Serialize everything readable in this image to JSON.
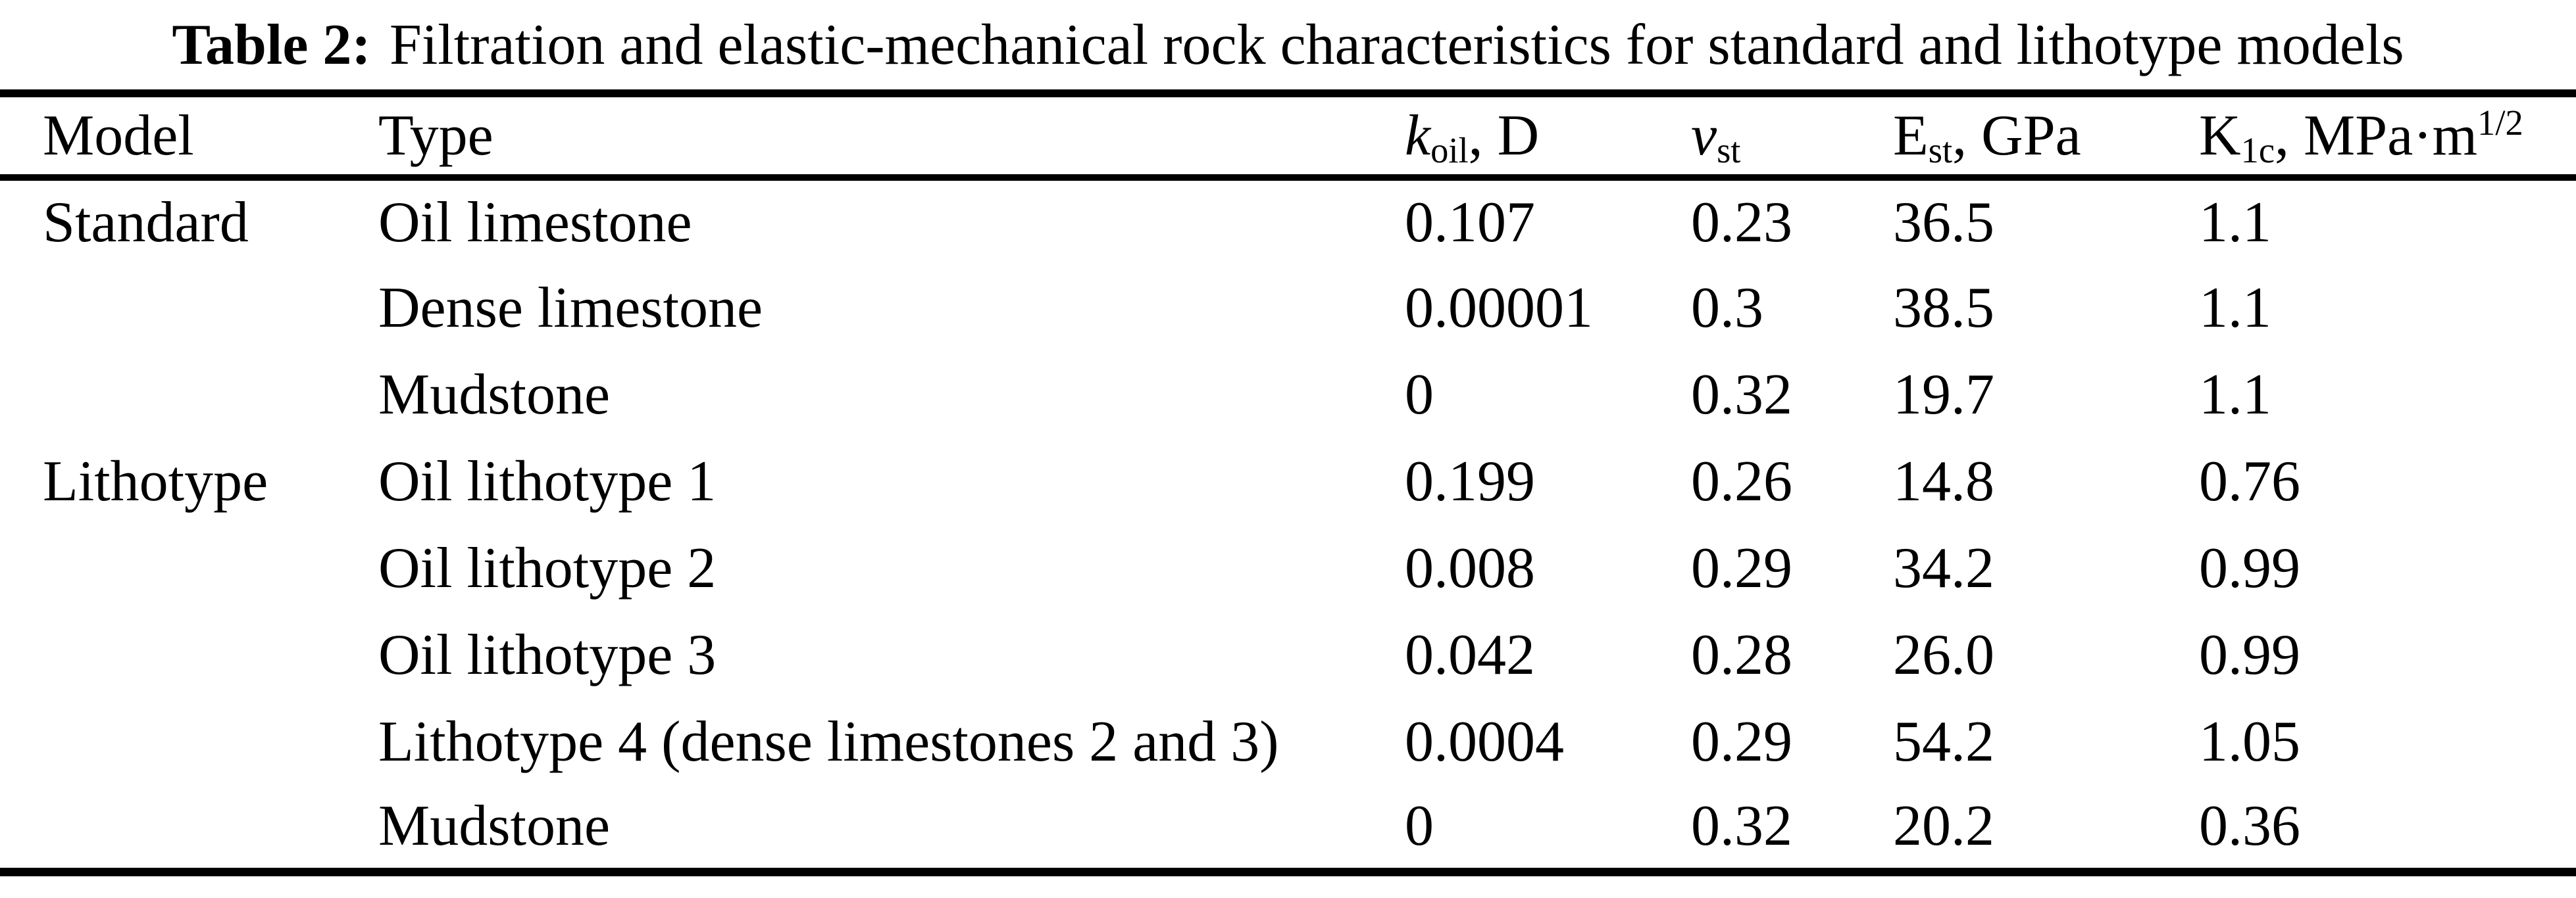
{
  "caption": {
    "label": "Table 2:",
    "text": "Filtration and elastic-mechanical rock characteristics for standard and lithotype models"
  },
  "table": {
    "columns": [
      {
        "label": "Model"
      },
      {
        "label": "Type"
      },
      {
        "symbol": "k",
        "subscript": "oil",
        "suffix": ", D"
      },
      {
        "symbol": "ν",
        "subscript": "st",
        "suffix": ""
      },
      {
        "symbol": "E",
        "subscript": "st",
        "suffix": ", GPa"
      },
      {
        "symbol": "K",
        "subscript": "1c",
        "suffix": ", MPa·m",
        "superscript": "1/2"
      }
    ],
    "rows": [
      {
        "model": "Standard",
        "type": "Oil limestone",
        "k_oil": "0.107",
        "nu_st": "0.23",
        "e_st": "36.5",
        "k_1c": "1.1"
      },
      {
        "model": "",
        "type": "Dense limestone",
        "k_oil": "0.00001",
        "nu_st": "0.3",
        "e_st": "38.5",
        "k_1c": "1.1"
      },
      {
        "model": "",
        "type": "Mudstone",
        "k_oil": "0",
        "nu_st": "0.32",
        "e_st": "19.7",
        "k_1c": "1.1"
      },
      {
        "model": "Lithotype",
        "type": "Oil lithotype 1",
        "k_oil": "0.199",
        "nu_st": "0.26",
        "e_st": "14.8",
        "k_1c": "0.76"
      },
      {
        "model": "",
        "type": "Oil lithotype 2",
        "k_oil": "0.008",
        "nu_st": "0.29",
        "e_st": "34.2",
        "k_1c": "0.99"
      },
      {
        "model": "",
        "type": "Oil lithotype 3",
        "k_oil": "0.042",
        "nu_st": "0.28",
        "e_st": "26.0",
        "k_1c": "0.99"
      },
      {
        "model": "",
        "type": "Lithotype 4 (dense limestones 2 and 3)",
        "k_oil": "0.0004",
        "nu_st": "0.29",
        "e_st": "54.2",
        "k_1c": "1.05"
      },
      {
        "model": "",
        "type": "Mudstone",
        "k_oil": "0",
        "nu_st": "0.32",
        "e_st": "20.2",
        "k_1c": "0.36"
      }
    ]
  }
}
